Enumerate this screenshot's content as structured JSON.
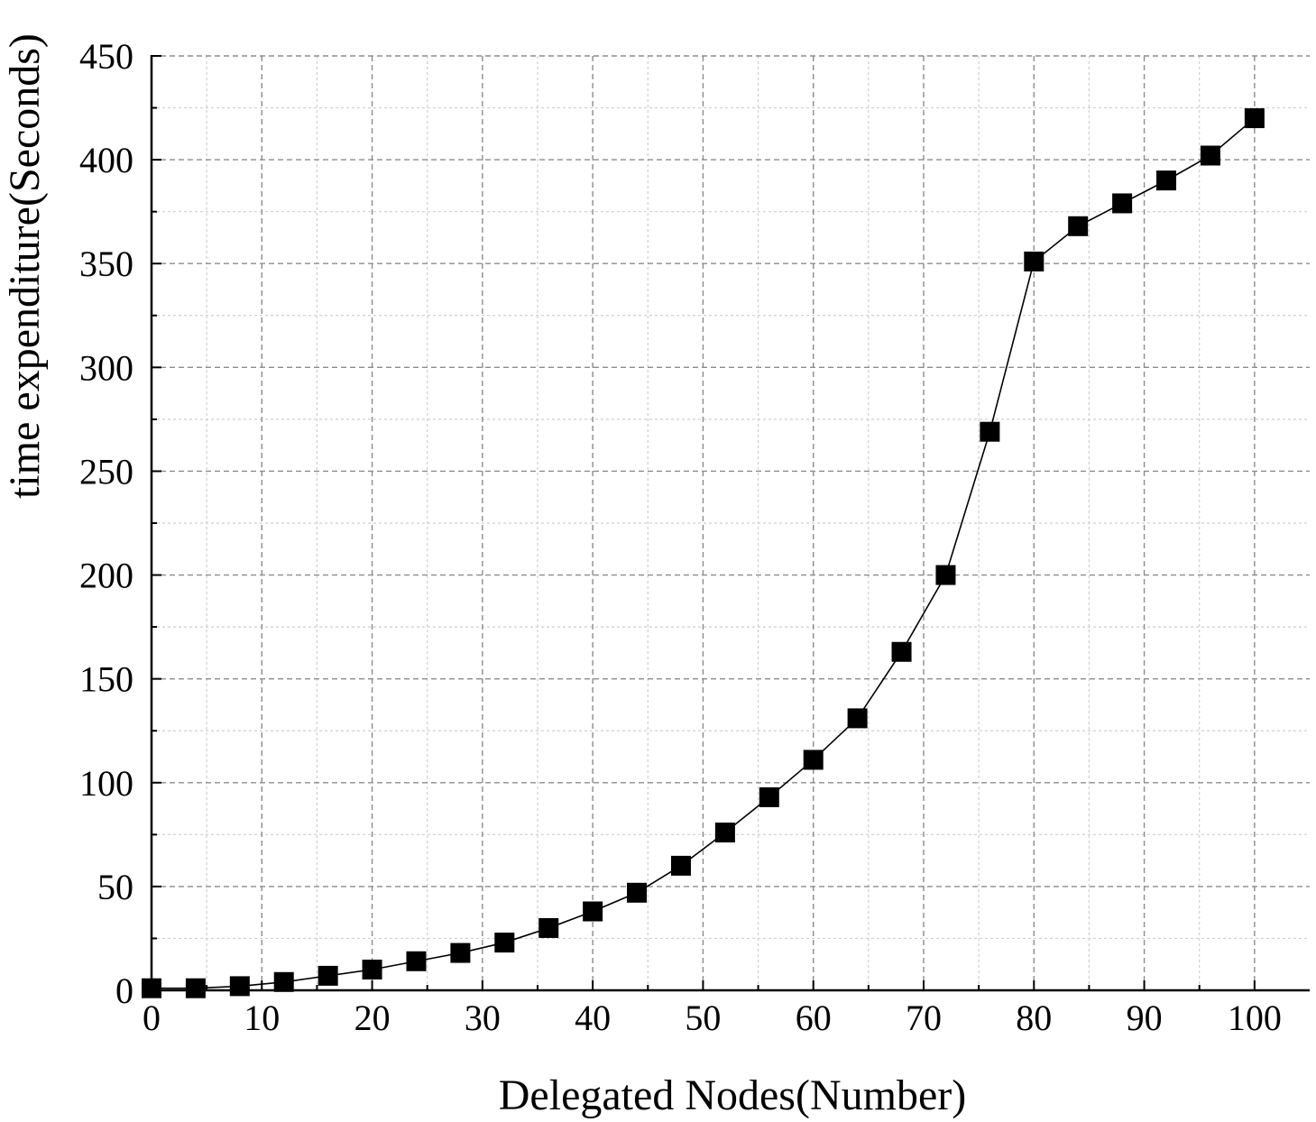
{
  "chart_data": {
    "type": "scatter",
    "title": "",
    "xlabel": "Delegated Nodes(Number)",
    "ylabel": "time expenditure(Seconds)",
    "xlim": [
      0,
      105
    ],
    "ylim": [
      0,
      450
    ],
    "x_ticks": [
      0,
      10,
      20,
      30,
      40,
      50,
      60,
      70,
      80,
      90,
      100
    ],
    "y_ticks": [
      0,
      50,
      100,
      150,
      200,
      250,
      300,
      350,
      400,
      450
    ],
    "grid": true,
    "marker": "square",
    "line_style": "solid",
    "series": [
      {
        "x": [
          0,
          4,
          8,
          12,
          16,
          20,
          24,
          28,
          32,
          36,
          40,
          44,
          48,
          52,
          56,
          60,
          64,
          68,
          72,
          76,
          80,
          84,
          88,
          92,
          96,
          100
        ],
        "y": [
          1,
          1,
          2,
          4,
          7,
          10,
          14,
          18,
          23,
          30,
          38,
          47,
          60,
          76,
          93,
          111,
          131,
          163,
          200,
          269,
          351,
          368,
          379,
          390,
          402,
          420
        ]
      }
    ],
    "colors": {
      "line": "#000000",
      "marker": "#000000",
      "grid": "#8c8c8c",
      "minor_grid": "#cfcfcf"
    }
  }
}
